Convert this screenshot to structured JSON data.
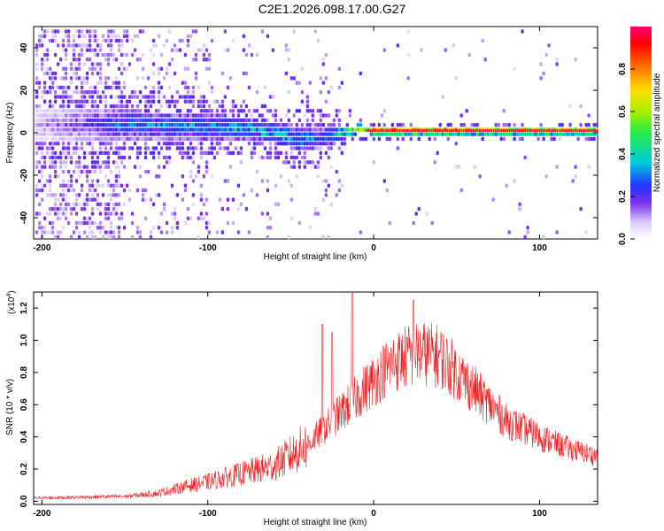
{
  "title": "C2E1.2026.098.17.00.G27",
  "colors": {
    "snr_line": "#ee2222",
    "axis": "#000000"
  },
  "chart_data": [
    {
      "type": "heatmap",
      "name": "spectrogram",
      "xlabel": "Height of straight line (km)",
      "ylabel": "Frequency (Hz)",
      "xlim": [
        -205,
        135
      ],
      "ylim": [
        -50,
        50
      ],
      "xticks": [
        -200,
        -100,
        0,
        100
      ],
      "xtick_labels": [
        "-200",
        "-100",
        "0",
        "100"
      ],
      "yticks": [
        -40,
        -20,
        0,
        20,
        40
      ],
      "ytick_labels": [
        "-40",
        "-20",
        "0",
        "20",
        "40"
      ],
      "colorbar": {
        "label": "Normalized spectral amplitude",
        "range": [
          0,
          1
        ],
        "ticks": [
          0.0,
          0.2,
          0.4,
          0.6,
          0.8
        ],
        "tick_labels": [
          "0.0",
          "0.2",
          "0.4",
          "0.6",
          "0.8"
        ]
      },
      "band": {
        "description_points_x": [
          -205,
          -150,
          -120,
          -100,
          -80,
          -60,
          -45,
          -30,
          -20,
          -10,
          0,
          50,
          100,
          135
        ],
        "center_freq": [
          4,
          4,
          3,
          3,
          2,
          0,
          -3,
          -2,
          0,
          2,
          1,
          1,
          1,
          1
        ],
        "half_width": [
          8,
          7,
          6,
          6,
          5,
          5,
          6,
          5,
          3,
          2,
          2,
          2,
          2,
          2
        ],
        "peak_amplitude": [
          0.1,
          0.3,
          0.35,
          0.35,
          0.4,
          0.4,
          0.35,
          0.3,
          0.5,
          0.7,
          0.9,
          0.9,
          0.8,
          0.75
        ]
      }
    },
    {
      "type": "line",
      "name": "snr",
      "xlabel": "Height of straight line (km)",
      "ylabel": "SNR (10 * v/v)",
      "y_multiplier": "(x10",
      "y_multiplier_exp": "4",
      "y_multiplier_close": ")",
      "xlim": [
        -205,
        135
      ],
      "ylim": [
        -0.02,
        1.3
      ],
      "xticks": [
        -200,
        -100,
        0,
        100
      ],
      "xtick_labels": [
        "-200",
        "-100",
        "0",
        "100"
      ],
      "yticks": [
        0.0,
        0.2,
        0.4,
        0.6,
        0.8,
        1.0,
        1.2
      ],
      "ytick_labels": [
        "0.0",
        "0.2",
        "0.4",
        "0.6",
        "0.8",
        "1.0",
        "1.2"
      ],
      "envelope_x": [
        -205,
        -150,
        -130,
        -110,
        -100,
        -80,
        -60,
        -40,
        -30,
        -20,
        -10,
        0,
        10,
        20,
        30,
        40,
        60,
        80,
        100,
        120,
        135
      ],
      "envelope_y": [
        0.02,
        0.03,
        0.05,
        0.1,
        0.12,
        0.17,
        0.22,
        0.35,
        0.45,
        0.55,
        0.65,
        0.75,
        0.85,
        0.9,
        0.92,
        0.9,
        0.7,
        0.5,
        0.4,
        0.32,
        0.28
      ],
      "spikes_x": [
        -31,
        -25,
        -13,
        24
      ],
      "spikes_y": [
        1.1,
        1.05,
        1.3,
        1.25
      ]
    }
  ]
}
